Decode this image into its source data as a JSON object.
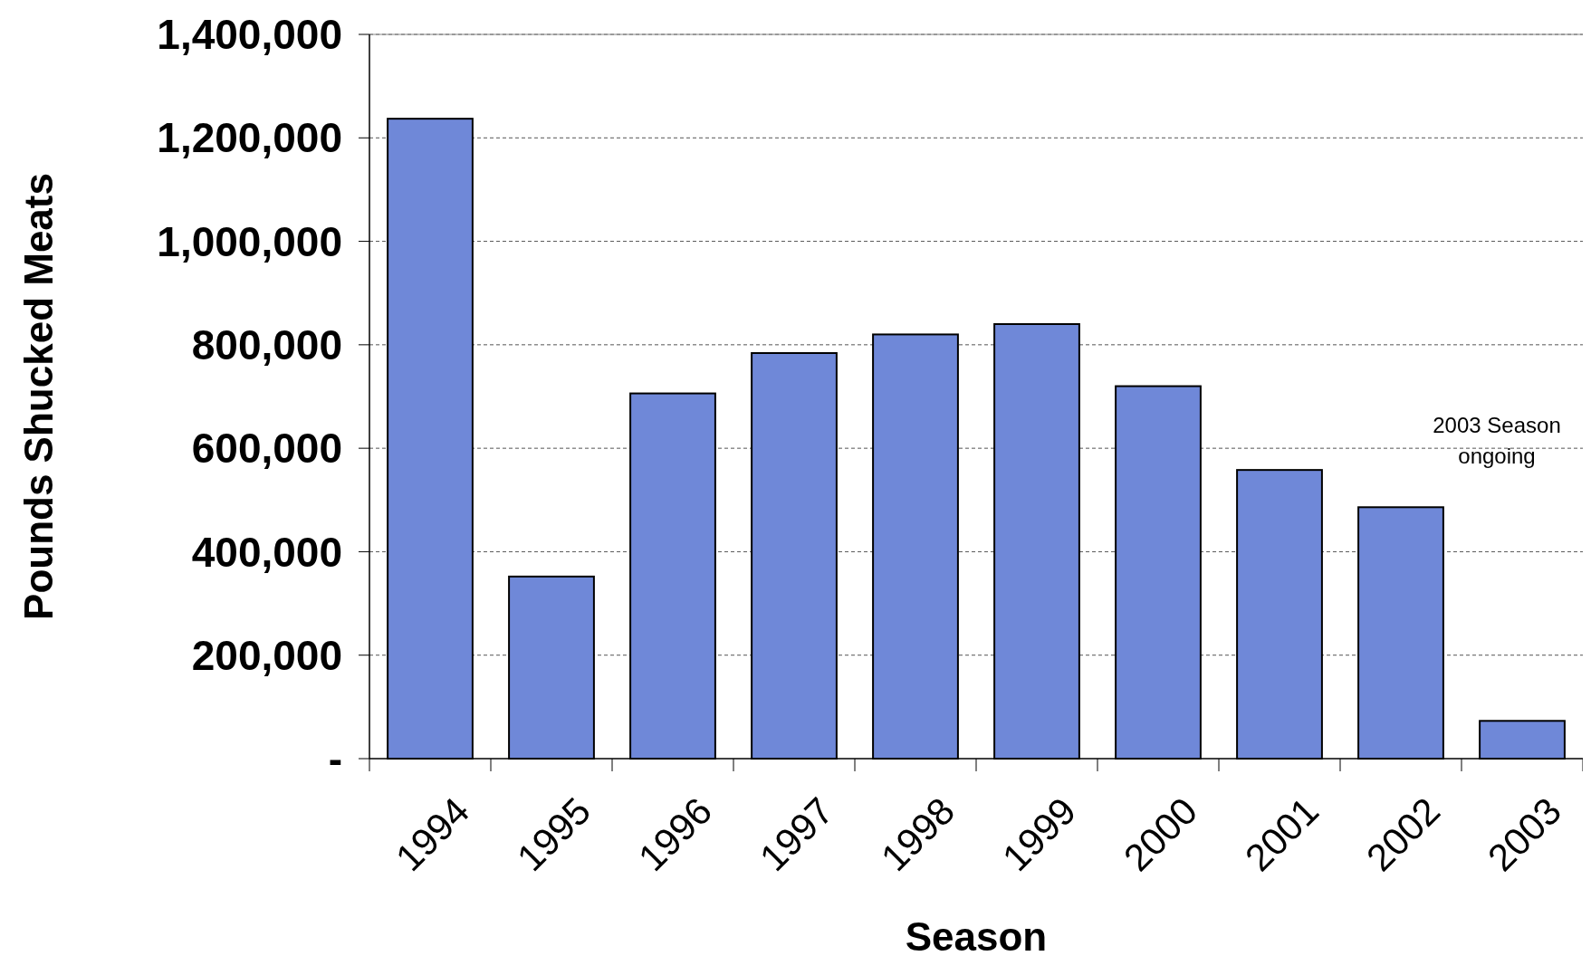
{
  "chart_data": {
    "type": "bar",
    "xlabel": "Season",
    "ylabel": "Pounds Shucked Meats",
    "categories": [
      "1994",
      "1995",
      "1996",
      "1997",
      "1998",
      "1999",
      "2000",
      "2001",
      "2002",
      "2003"
    ],
    "values": [
      1237000,
      352000,
      706000,
      784000,
      820000,
      840000,
      720000,
      558000,
      486000,
      73000
    ],
    "color": "#6f88d8",
    "ylim": [
      0,
      1400000
    ],
    "yticks": [
      {
        "value": 0,
        "label": "-"
      },
      {
        "value": 200000,
        "label": "200,000"
      },
      {
        "value": 400000,
        "label": "400,000"
      },
      {
        "value": 600000,
        "label": "600,000"
      },
      {
        "value": 800000,
        "label": "800,000"
      },
      {
        "value": 1000000,
        "label": "1,000,000"
      },
      {
        "value": 1200000,
        "label": "1,200,000"
      },
      {
        "value": 1400000,
        "label": "1,400,000"
      }
    ],
    "grid": "y",
    "annotations": [
      "2003 Season ongoing"
    ]
  }
}
